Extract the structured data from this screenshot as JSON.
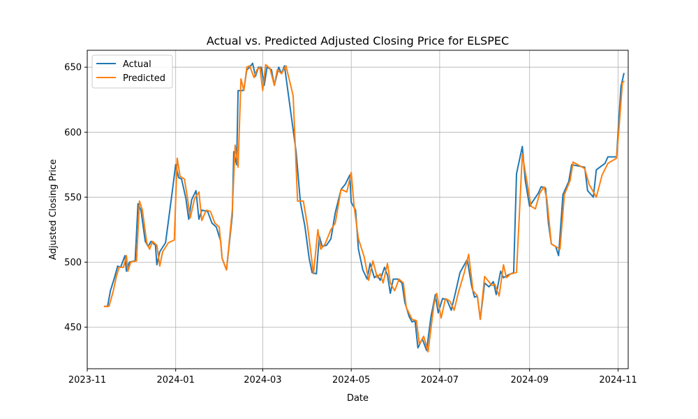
{
  "chart_data": {
    "type": "line",
    "title": "Actual vs. Predicted Adjusted Closing Price for ELSPEC",
    "xlabel": "Date",
    "ylabel": "Adjusted Closing Price",
    "xlim": [
      "2023-11-01",
      "2024-11-08"
    ],
    "ylim": [
      418,
      663
    ],
    "x_ticks": [
      "2023-11",
      "2024-01",
      "2024-03",
      "2024-05",
      "2024-07",
      "2024-09",
      "2024-11"
    ],
    "y_ticks": [
      450,
      500,
      550,
      600,
      650
    ],
    "grid": true,
    "legend_position": "upper-left",
    "series": [
      {
        "name": "Actual",
        "color": "#1f77b4",
        "points": [
          [
            "2023-11-13",
            466
          ],
          [
            "2023-11-15",
            466
          ],
          [
            "2023-11-17",
            478
          ],
          [
            "2023-11-20",
            489
          ],
          [
            "2023-11-22",
            497
          ],
          [
            "2023-11-24",
            496
          ],
          [
            "2023-11-27",
            505
          ],
          [
            "2023-11-28",
            493
          ],
          [
            "2023-11-30",
            500
          ],
          [
            "2023-12-04",
            501
          ],
          [
            "2023-12-06",
            545
          ],
          [
            "2023-12-08",
            540
          ],
          [
            "2023-12-11",
            516
          ],
          [
            "2023-12-13",
            512
          ],
          [
            "2023-12-15",
            516
          ],
          [
            "2023-12-18",
            513
          ],
          [
            "2023-12-19",
            498
          ],
          [
            "2023-12-21",
            508
          ],
          [
            "2023-12-25",
            515
          ],
          [
            "2023-12-29",
            549
          ],
          [
            "2024-01-01",
            575
          ],
          [
            "2024-01-03",
            565
          ],
          [
            "2024-01-05",
            564
          ],
          [
            "2024-01-08",
            549
          ],
          [
            "2024-01-10",
            533
          ],
          [
            "2024-01-12",
            548
          ],
          [
            "2024-01-15",
            555
          ],
          [
            "2024-01-17",
            533
          ],
          [
            "2024-01-19",
            540
          ],
          [
            "2024-01-23",
            539
          ],
          [
            "2024-01-26",
            530
          ],
          [
            "2024-01-29",
            527
          ],
          [
            "2024-02-01",
            516
          ],
          [
            "2024-02-02",
            503
          ],
          [
            "2024-02-05",
            494
          ],
          [
            "2024-02-09",
            536
          ],
          [
            "2024-02-10",
            585
          ],
          [
            "2024-02-12",
            575
          ],
          [
            "2024-02-13",
            632
          ],
          [
            "2024-02-16",
            632
          ],
          [
            "2024-02-17",
            633
          ],
          [
            "2024-02-19",
            648
          ],
          [
            "2024-02-21",
            650
          ],
          [
            "2024-02-23",
            653
          ],
          [
            "2024-02-25",
            643
          ],
          [
            "2024-02-27",
            650
          ],
          [
            "2024-02-29",
            650
          ],
          [
            "2024-03-02",
            636
          ],
          [
            "2024-03-04",
            650
          ],
          [
            "2024-03-07",
            648
          ],
          [
            "2024-03-09",
            636
          ],
          [
            "2024-03-12",
            650
          ],
          [
            "2024-03-14",
            645
          ],
          [
            "2024-03-16",
            651
          ],
          [
            "2024-03-20",
            618
          ],
          [
            "2024-03-24",
            585
          ],
          [
            "2024-03-27",
            546
          ],
          [
            "2024-03-30",
            528
          ],
          [
            "2024-04-02",
            503
          ],
          [
            "2024-04-04",
            492
          ],
          [
            "2024-04-07",
            491
          ],
          [
            "2024-04-09",
            520
          ],
          [
            "2024-04-11",
            512
          ],
          [
            "2024-04-14",
            513
          ],
          [
            "2024-04-17",
            518
          ],
          [
            "2024-04-20",
            538
          ],
          [
            "2024-04-24",
            556
          ],
          [
            "2024-04-27",
            560
          ],
          [
            "2024-04-30",
            567
          ],
          [
            "2024-05-01",
            546
          ],
          [
            "2024-05-04",
            540
          ],
          [
            "2024-05-06",
            510
          ],
          [
            "2024-05-09",
            494
          ],
          [
            "2024-05-12",
            487
          ],
          [
            "2024-05-14",
            499
          ],
          [
            "2024-05-17",
            488
          ],
          [
            "2024-05-19",
            490
          ],
          [
            "2024-05-21",
            486
          ],
          [
            "2024-05-24",
            496
          ],
          [
            "2024-05-26",
            490
          ],
          [
            "2024-05-28",
            476
          ],
          [
            "2024-05-30",
            487
          ],
          [
            "2024-06-02",
            487
          ],
          [
            "2024-06-05",
            484
          ],
          [
            "2024-06-07",
            469
          ],
          [
            "2024-06-10",
            458
          ],
          [
            "2024-06-12",
            454
          ],
          [
            "2024-06-14",
            455
          ],
          [
            "2024-06-16",
            434
          ],
          [
            "2024-06-19",
            441
          ],
          [
            "2024-06-22",
            432
          ],
          [
            "2024-06-25",
            458
          ],
          [
            "2024-06-28",
            475
          ],
          [
            "2024-06-30",
            461
          ],
          [
            "2024-07-03",
            472
          ],
          [
            "2024-07-06",
            471
          ],
          [
            "2024-07-09",
            463
          ],
          [
            "2024-07-12",
            477
          ],
          [
            "2024-07-15",
            492
          ],
          [
            "2024-07-20",
            502
          ],
          [
            "2024-07-23",
            482
          ],
          [
            "2024-07-25",
            473
          ],
          [
            "2024-07-27",
            474
          ],
          [
            "2024-07-29",
            456
          ],
          [
            "2024-08-01",
            484
          ],
          [
            "2024-08-04",
            481
          ],
          [
            "2024-08-07",
            485
          ],
          [
            "2024-08-09",
            475
          ],
          [
            "2024-08-12",
            493
          ],
          [
            "2024-08-14",
            488
          ],
          [
            "2024-08-17",
            490
          ],
          [
            "2024-08-21",
            492
          ],
          [
            "2024-08-23",
            568
          ],
          [
            "2024-08-27",
            589
          ],
          [
            "2024-08-29",
            563
          ],
          [
            "2024-09-01",
            543
          ],
          [
            "2024-09-04",
            548
          ],
          [
            "2024-09-07",
            553
          ],
          [
            "2024-09-09",
            558
          ],
          [
            "2024-09-12",
            557
          ],
          [
            "2024-09-14",
            530
          ],
          [
            "2024-09-16",
            514
          ],
          [
            "2024-09-19",
            512
          ],
          [
            "2024-09-21",
            505
          ],
          [
            "2024-09-24",
            552
          ],
          [
            "2024-09-28",
            562
          ],
          [
            "2024-09-30",
            575
          ],
          [
            "2024-10-09",
            573
          ],
          [
            "2024-10-11",
            555
          ],
          [
            "2024-10-15",
            550
          ],
          [
            "2024-10-17",
            571
          ],
          [
            "2024-10-23",
            576
          ],
          [
            "2024-10-25",
            581
          ],
          [
            "2024-10-31",
            581
          ],
          [
            "2024-11-01",
            600
          ],
          [
            "2024-11-03",
            635
          ],
          [
            "2024-11-05",
            645
          ]
        ]
      },
      {
        "name": "Predicted",
        "color": "#ff7f0e",
        "points": [
          [
            "2023-11-13",
            466
          ],
          [
            "2023-11-16",
            466
          ],
          [
            "2023-11-19",
            478
          ],
          [
            "2023-11-21",
            489
          ],
          [
            "2023-11-23",
            496
          ],
          [
            "2023-11-26",
            496
          ],
          [
            "2023-11-28",
            505
          ],
          [
            "2023-11-29",
            493
          ],
          [
            "2023-12-01",
            500
          ],
          [
            "2023-12-05",
            501
          ],
          [
            "2023-12-07",
            547
          ],
          [
            "2023-12-09",
            540
          ],
          [
            "2023-12-12",
            515
          ],
          [
            "2023-12-14",
            510
          ],
          [
            "2023-12-16",
            516
          ],
          [
            "2023-12-19",
            513
          ],
          [
            "2023-12-21",
            497
          ],
          [
            "2023-12-23",
            508
          ],
          [
            "2023-12-27",
            515
          ],
          [
            "2023-12-31",
            517
          ],
          [
            "2024-01-02",
            580
          ],
          [
            "2024-01-04",
            566
          ],
          [
            "2024-01-07",
            564
          ],
          [
            "2024-01-09",
            550
          ],
          [
            "2024-01-11",
            534
          ],
          [
            "2024-01-14",
            549
          ],
          [
            "2024-01-17",
            554
          ],
          [
            "2024-01-19",
            532
          ],
          [
            "2024-01-22",
            540
          ],
          [
            "2024-01-25",
            539
          ],
          [
            "2024-01-28",
            530
          ],
          [
            "2024-01-31",
            527
          ],
          [
            "2024-02-02",
            503
          ],
          [
            "2024-02-05",
            494
          ],
          [
            "2024-02-09",
            540
          ],
          [
            "2024-02-11",
            590
          ],
          [
            "2024-02-13",
            573
          ],
          [
            "2024-02-15",
            641
          ],
          [
            "2024-02-17",
            632
          ],
          [
            "2024-02-19",
            650
          ],
          [
            "2024-02-21",
            651
          ],
          [
            "2024-02-24",
            642
          ],
          [
            "2024-02-26",
            648
          ],
          [
            "2024-02-28",
            650
          ],
          [
            "2024-03-01",
            632
          ],
          [
            "2024-03-03",
            652
          ],
          [
            "2024-03-06",
            649
          ],
          [
            "2024-03-09",
            636
          ],
          [
            "2024-03-11",
            648
          ],
          [
            "2024-03-14",
            645
          ],
          [
            "2024-03-17",
            651
          ],
          [
            "2024-03-22",
            628
          ],
          [
            "2024-03-25",
            547
          ],
          [
            "2024-03-29",
            547
          ],
          [
            "2024-04-01",
            527
          ],
          [
            "2024-04-05",
            491
          ],
          [
            "2024-04-08",
            525
          ],
          [
            "2024-04-10",
            510
          ],
          [
            "2024-04-13",
            514
          ],
          [
            "2024-04-17",
            525
          ],
          [
            "2024-04-20",
            530
          ],
          [
            "2024-04-24",
            556
          ],
          [
            "2024-04-28",
            554
          ],
          [
            "2024-05-01",
            569
          ],
          [
            "2024-05-03",
            543
          ],
          [
            "2024-05-06",
            518
          ],
          [
            "2024-05-10",
            504
          ],
          [
            "2024-05-13",
            486
          ],
          [
            "2024-05-16",
            501
          ],
          [
            "2024-05-19",
            488
          ],
          [
            "2024-05-21",
            491
          ],
          [
            "2024-05-23",
            484
          ],
          [
            "2024-05-26",
            499
          ],
          [
            "2024-05-28",
            484
          ],
          [
            "2024-05-31",
            478
          ],
          [
            "2024-06-03",
            487
          ],
          [
            "2024-06-06",
            484
          ],
          [
            "2024-06-08",
            465
          ],
          [
            "2024-06-12",
            456
          ],
          [
            "2024-06-15",
            455
          ],
          [
            "2024-06-17",
            437
          ],
          [
            "2024-06-20",
            443
          ],
          [
            "2024-06-23",
            431
          ],
          [
            "2024-06-27",
            467
          ],
          [
            "2024-06-29",
            476
          ],
          [
            "2024-07-02",
            457
          ],
          [
            "2024-07-05",
            472
          ],
          [
            "2024-07-08",
            470
          ],
          [
            "2024-07-11",
            463
          ],
          [
            "2024-07-14",
            477
          ],
          [
            "2024-07-18",
            492
          ],
          [
            "2024-07-21",
            506
          ],
          [
            "2024-07-24",
            478
          ],
          [
            "2024-07-27",
            474
          ],
          [
            "2024-07-29",
            456
          ],
          [
            "2024-08-01",
            489
          ],
          [
            "2024-08-06",
            482
          ],
          [
            "2024-08-08",
            483
          ],
          [
            "2024-08-11",
            474
          ],
          [
            "2024-08-14",
            498
          ],
          [
            "2024-08-16",
            488
          ],
          [
            "2024-08-19",
            491
          ],
          [
            "2024-08-23",
            492
          ],
          [
            "2024-08-27",
            583
          ],
          [
            "2024-08-30",
            563
          ],
          [
            "2024-09-02",
            543
          ],
          [
            "2024-09-05",
            541
          ],
          [
            "2024-09-08",
            553
          ],
          [
            "2024-09-11",
            558
          ],
          [
            "2024-09-13",
            548
          ],
          [
            "2024-09-16",
            514
          ],
          [
            "2024-09-19",
            512
          ],
          [
            "2024-09-22",
            510
          ],
          [
            "2024-09-25",
            552
          ],
          [
            "2024-09-29",
            563
          ],
          [
            "2024-10-01",
            577
          ],
          [
            "2024-10-09",
            572
          ],
          [
            "2024-10-12",
            560
          ],
          [
            "2024-10-17",
            550
          ],
          [
            "2024-10-21",
            567
          ],
          [
            "2024-10-25",
            576
          ],
          [
            "2024-10-31",
            580
          ],
          [
            "2024-11-02",
            608
          ],
          [
            "2024-11-04",
            638
          ],
          [
            "2024-11-05",
            639
          ]
        ]
      }
    ]
  }
}
